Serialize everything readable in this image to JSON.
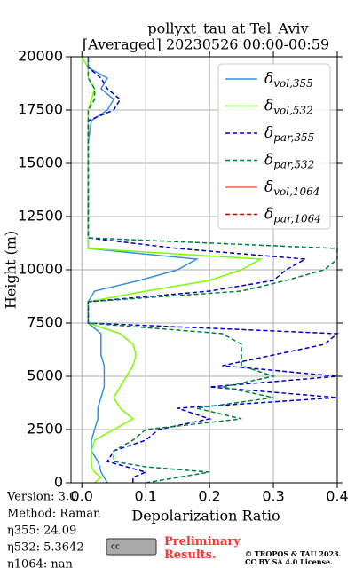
{
  "chart_data": {
    "type": "line",
    "title": "pollyxt_tau at Tel_Aviv",
    "subtitle": "[Averaged] 20230526 00:00-00:59",
    "xlabel": "Depolarization Ratio",
    "ylabel": "Height (m)",
    "xlim": [
      -0.017,
      0.4
    ],
    "ylim": [
      0,
      20000
    ],
    "xticks": [
      {
        "value": 0,
        "label": "0.0"
      },
      0.1,
      0.2,
      0.3,
      0.4
    ],
    "yticks": [
      0,
      2500,
      5000,
      7500,
      10000,
      12500,
      15000,
      17500,
      20000
    ],
    "grid": true,
    "legend": "upper right",
    "y": [
      0,
      250,
      500,
      750,
      1000,
      1500,
      2000,
      2500,
      3000,
      3500,
      4000,
      4500,
      5000,
      5500,
      6000,
      6500,
      7000,
      7500,
      8000,
      8500,
      9000,
      9500,
      10000,
      10500,
      11000,
      11500,
      12000,
      13000,
      14000,
      15000,
      16000,
      17000,
      17500,
      18000,
      18500,
      19000,
      19500,
      20000
    ],
    "series": [
      {
        "name": "δvol,355",
        "color": "#3a8fdc",
        "dash": "none",
        "values": [
          0.04,
          0.035,
          0.03,
          0.028,
          0.025,
          0.015,
          0.015,
          0.02,
          0.025,
          0.025,
          0.03,
          0.035,
          0.035,
          0.035,
          0.03,
          0.03,
          0.03,
          0.01,
          0.01,
          0.01,
          0.02,
          0.09,
          0.15,
          0.18,
          0.01,
          0.01,
          0.01,
          0.01,
          0.01,
          0.01,
          0.01,
          0.015,
          0.04,
          0.05,
          0.03,
          0.04,
          0.01,
          0.01
        ]
      },
      {
        "name": "δvol,532",
        "color": "#7cfc00",
        "dash": "none",
        "values": [
          0.02,
          0.03,
          0.02,
          0.015,
          0.015,
          0.015,
          0.02,
          0.05,
          0.08,
          0.06,
          0.05,
          0.06,
          0.07,
          0.08,
          0.085,
          0.08,
          0.06,
          0.01,
          0.01,
          0.01,
          0.1,
          0.2,
          0.25,
          0.28,
          0.01,
          0.01,
          0.01,
          0.01,
          0.01,
          0.01,
          0.01,
          0.01,
          0.01,
          0.015,
          0.02,
          0.01,
          0.01,
          0.0
        ]
      },
      {
        "name": "δpar,355",
        "color": "#0000cc",
        "dash": "5 3",
        "values": [
          0.08,
          0.08,
          0.1,
          0.07,
          0.04,
          0.05,
          0.1,
          0.12,
          0.2,
          0.15,
          0.4,
          0.2,
          0.4,
          0.22,
          0.3,
          0.38,
          0.4,
          0.01,
          0.01,
          0.01,
          0.2,
          0.3,
          0.32,
          0.35,
          0.15,
          0.01,
          0.01,
          0.01,
          0.01,
          0.01,
          0.01,
          0.01,
          0.05,
          0.06,
          0.04,
          0.03,
          0.01,
          0.01
        ]
      },
      {
        "name": "δpar,532",
        "color": "#008040",
        "dash": "5 3",
        "values": [
          0.1,
          0.15,
          0.2,
          0.1,
          0.05,
          0.05,
          0.08,
          0.1,
          0.25,
          0.18,
          0.3,
          0.22,
          0.3,
          0.25,
          0.25,
          0.25,
          0.22,
          0.01,
          0.01,
          0.01,
          0.25,
          0.32,
          0.38,
          0.4,
          0.4,
          0.01,
          0.01,
          0.01,
          0.01,
          0.01,
          0.01,
          0.01,
          0.01,
          0.02,
          0.02,
          0.01,
          0.01,
          0.01
        ]
      },
      {
        "name": "δvol,1064",
        "color": "#ff6040",
        "dash": "none",
        "values": [
          null,
          null,
          null,
          null,
          null,
          null,
          null,
          null,
          null,
          null,
          null,
          null,
          null,
          null,
          null,
          null,
          null,
          null,
          null,
          null,
          null,
          null,
          null,
          null,
          null,
          null,
          null,
          null,
          null,
          null,
          null,
          null,
          null,
          null,
          null,
          null,
          null,
          null
        ]
      },
      {
        "name": "δpar,1064",
        "color": "#cc0000",
        "dash": "5 3",
        "values": [
          null,
          null,
          null,
          null,
          null,
          null,
          null,
          null,
          null,
          null,
          null,
          null,
          null,
          null,
          null,
          null,
          null,
          null,
          null,
          null,
          null,
          null,
          null,
          null,
          null,
          null,
          null,
          null,
          null,
          null,
          null,
          null,
          null,
          null,
          null,
          null,
          null,
          null
        ]
      }
    ]
  },
  "info": [
    "Version: 3.0",
    "Method: Raman",
    "η355:  24.09",
    "η532: 5.3642",
    "η1064:    nan"
  ],
  "footer": {
    "notice": "Preliminary Results.",
    "copyright": "© TROPOS & TAU 2023.",
    "license": "CC BY SA 4.0 License.",
    "badge": "cc"
  }
}
